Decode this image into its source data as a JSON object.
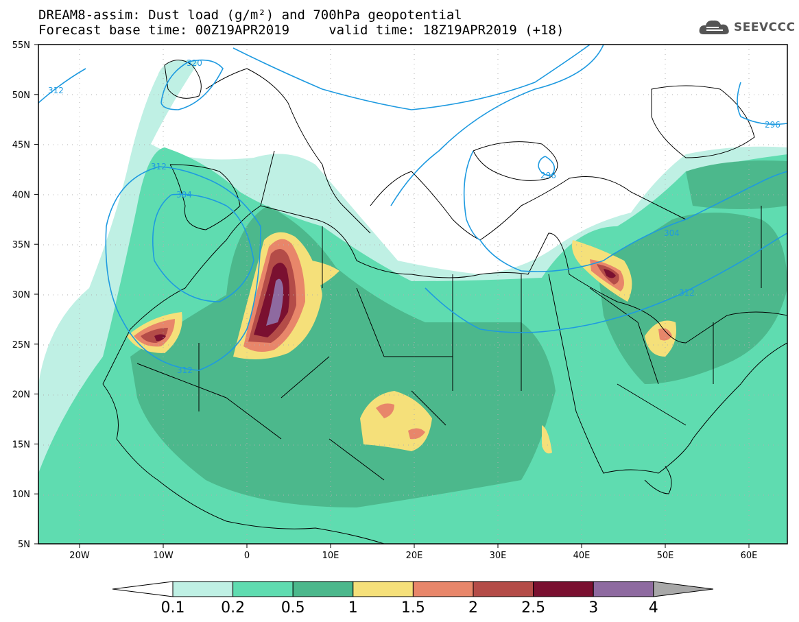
{
  "title": {
    "line1": "DREAM8-assim: Dust load (g/m²) and 700hPa geopotential",
    "line2": "Forecast base time: 00Z19APR2019     valid time: 18Z19APR2019 (+18)"
  },
  "logo": {
    "text": "SEEVCCC",
    "icon": "cloud-icon"
  },
  "map": {
    "lat_labels": [
      "55N",
      "50N",
      "45N",
      "40N",
      "35N",
      "30N",
      "25N",
      "20N",
      "15N",
      "10N",
      "5N"
    ],
    "lon_labels": [
      "20W",
      "10W",
      "0",
      "10E",
      "20E",
      "30E",
      "40E",
      "50E",
      "60E"
    ],
    "contour_labels": [
      "320",
      "312",
      "312",
      "304",
      "296",
      "296",
      "304",
      "312",
      "312"
    ],
    "contour_color": "#1e9ae0"
  },
  "legend": {
    "labels": [
      "0.1",
      "0.2",
      "0.5",
      "1",
      "1.5",
      "2",
      "2.5",
      "3",
      "4"
    ],
    "colors": [
      "#ffffff",
      "#bff0e4",
      "#5fdcb0",
      "#4cb88c",
      "#f5e07a",
      "#e8866a",
      "#b44c48",
      "#7a1030",
      "#8e6aa0",
      "#a8a8a8"
    ]
  }
}
